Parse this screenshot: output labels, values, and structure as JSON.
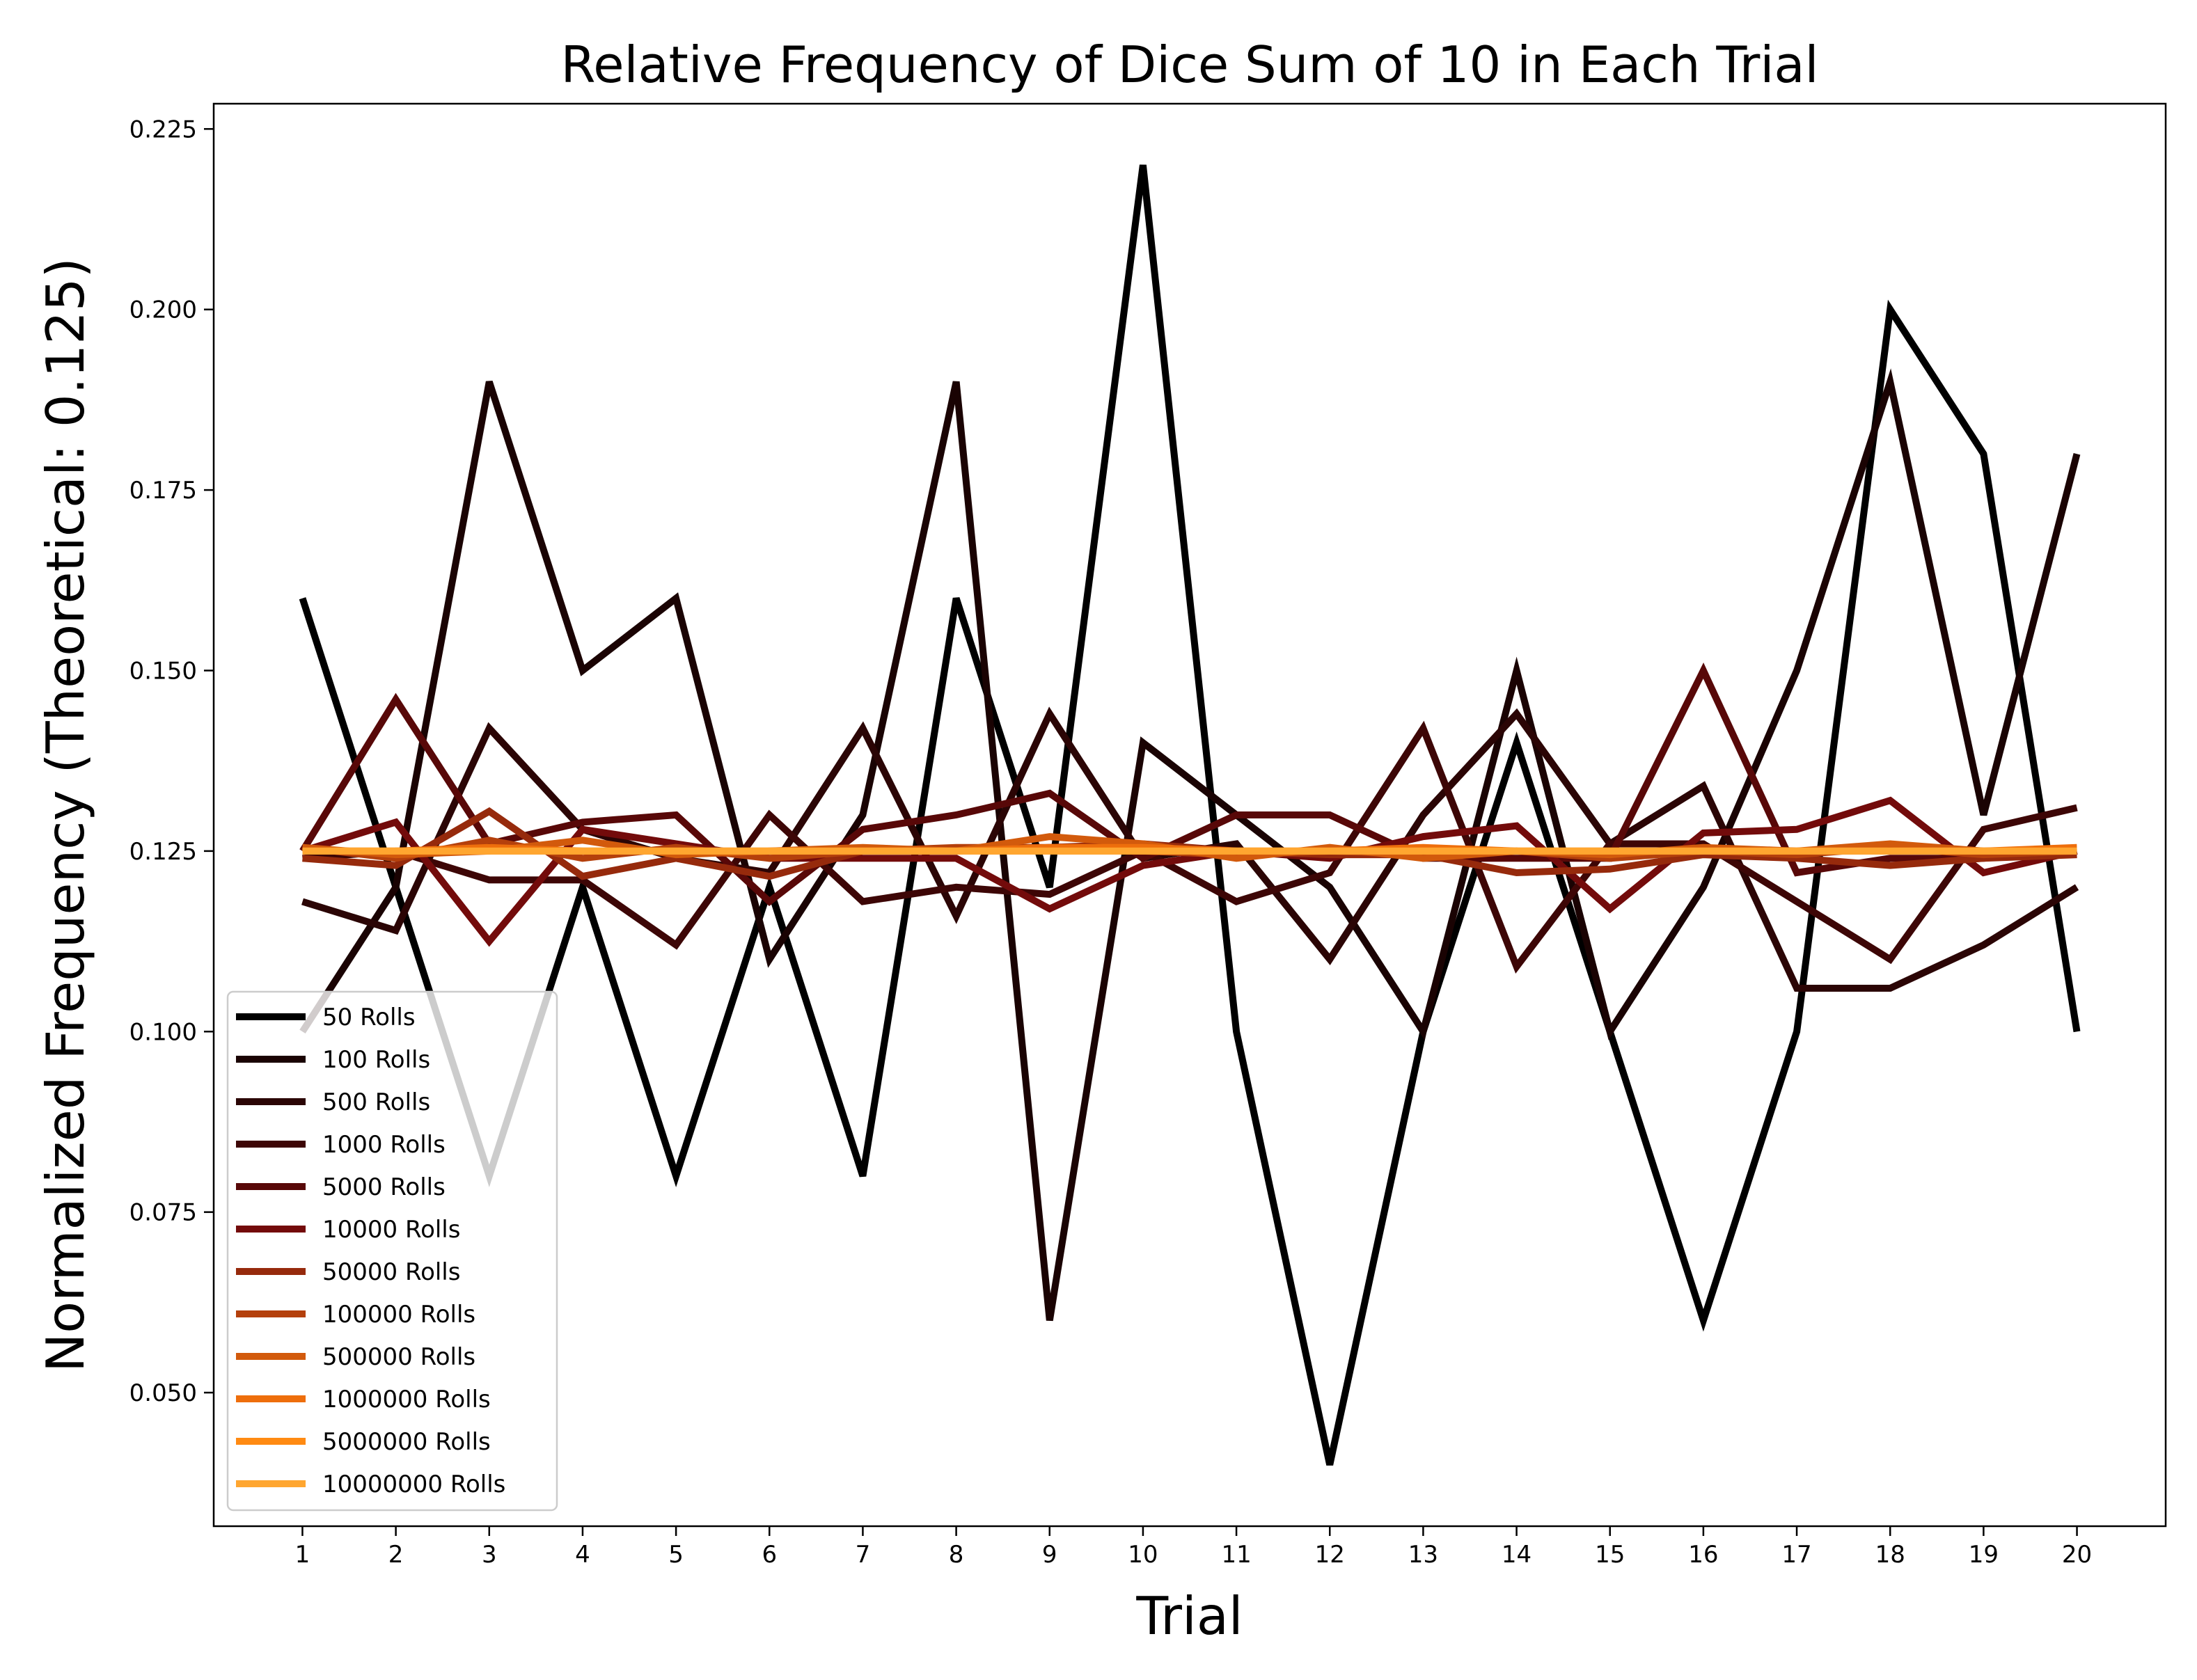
{
  "chart_data": {
    "type": "line",
    "title": "Relative Frequency of Dice Sum of 10 in Each Trial",
    "xlabel": "Trial",
    "ylabel": "Normalized Frequency (Theoretical: 0.125)",
    "x": [
      1,
      2,
      3,
      4,
      5,
      6,
      7,
      8,
      9,
      10,
      11,
      12,
      13,
      14,
      15,
      16,
      17,
      18,
      19,
      20
    ],
    "xlim": [
      0.05,
      20.95
    ],
    "ylim": [
      0.0315,
      0.2285
    ],
    "yticks": [
      0.05,
      0.075,
      0.1,
      0.125,
      0.15,
      0.175,
      0.2,
      0.225
    ],
    "ytick_labels": [
      "0.050",
      "0.075",
      "0.100",
      "0.125",
      "0.150",
      "0.175",
      "0.200",
      "0.225"
    ],
    "legend_position": "lower-left",
    "grid": false,
    "series": [
      {
        "name": "50 Rolls",
        "color": "#000000",
        "values": [
          0.16,
          0.12,
          0.08,
          0.12,
          0.08,
          0.12,
          0.08,
          0.16,
          0.12,
          0.22,
          0.1,
          0.04,
          0.1,
          0.14,
          0.1,
          0.06,
          0.1,
          0.2,
          0.18,
          0.1
        ]
      },
      {
        "name": "100 Rolls",
        "color": "#1a0303",
        "values": [
          0.1,
          0.12,
          0.19,
          0.15,
          0.16,
          0.11,
          0.13,
          0.19,
          0.06,
          0.14,
          0.13,
          0.12,
          0.1,
          0.15,
          0.1,
          0.12,
          0.15,
          0.19,
          0.13,
          0.18
        ]
      },
      {
        "name": "500 Rolls",
        "color": "#2b0505",
        "values": [
          0.118,
          0.114,
          0.142,
          0.128,
          0.124,
          0.122,
          0.142,
          0.116,
          0.144,
          0.124,
          0.126,
          0.11,
          0.13,
          0.144,
          0.126,
          0.134,
          0.106,
          0.106,
          0.112,
          0.12
        ]
      },
      {
        "name": "1000 Rolls",
        "color": "#3d0606",
        "values": [
          0.124,
          0.125,
          0.121,
          0.121,
          0.112,
          0.13,
          0.118,
          0.12,
          0.119,
          0.125,
          0.118,
          0.122,
          0.142,
          0.109,
          0.126,
          0.126,
          0.118,
          0.11,
          0.128,
          0.131
        ]
      },
      {
        "name": "5000 Rolls",
        "color": "#580808",
        "values": [
          0.125,
          0.146,
          0.126,
          0.129,
          0.13,
          0.118,
          0.128,
          0.13,
          0.133,
          0.124,
          0.13,
          0.13,
          0.124,
          0.124,
          0.124,
          0.15,
          0.122,
          0.124,
          0.124,
          0.125
        ]
      },
      {
        "name": "10000 Rolls",
        "color": "#730b0b",
        "values": [
          0.125,
          0.129,
          0.1125,
          0.128,
          0.126,
          0.124,
          0.124,
          0.124,
          0.117,
          0.123,
          0.125,
          0.124,
          0.127,
          0.1285,
          0.117,
          0.1275,
          0.128,
          0.132,
          0.122,
          0.125
        ]
      },
      {
        "name": "50000 Rolls",
        "color": "#962a0c",
        "values": [
          0.124,
          0.123,
          0.1305,
          0.1215,
          0.124,
          0.1215,
          0.125,
          0.125,
          0.1255,
          0.126,
          0.125,
          0.1245,
          0.1245,
          0.122,
          0.1225,
          0.1245,
          0.124,
          0.123,
          0.124,
          0.1245
        ]
      },
      {
        "name": "100000 Rolls",
        "color": "#b4400c",
        "values": [
          0.1255,
          0.124,
          0.1265,
          0.124,
          0.1255,
          0.124,
          0.125,
          0.1255,
          0.1255,
          0.125,
          0.1245,
          0.125,
          0.1245,
          0.125,
          0.124,
          0.125,
          0.1245,
          0.1255,
          0.1245,
          0.125
        ]
      },
      {
        "name": "500000 Rolls",
        "color": "#d25a0c",
        "values": [
          0.1255,
          0.1245,
          0.125,
          0.1265,
          0.1245,
          0.125,
          0.1255,
          0.125,
          0.127,
          0.126,
          0.124,
          0.1255,
          0.124,
          0.125,
          0.1245,
          0.1255,
          0.125,
          0.126,
          0.125,
          0.125
        ]
      },
      {
        "name": "1000000 Rolls",
        "color": "#ee6e0c",
        "values": [
          0.125,
          0.125,
          0.1255,
          0.125,
          0.125,
          0.125,
          0.125,
          0.125,
          0.1255,
          0.1255,
          0.125,
          0.125,
          0.1255,
          0.125,
          0.125,
          0.125,
          0.125,
          0.125,
          0.125,
          0.1255
        ]
      },
      {
        "name": "5000000 Rolls",
        "color": "#ff8a12",
        "values": [
          0.125,
          0.125,
          0.125,
          0.125,
          0.125,
          0.125,
          0.125,
          0.125,
          0.125,
          0.125,
          0.125,
          0.125,
          0.125,
          0.125,
          0.125,
          0.125,
          0.125,
          0.125,
          0.125,
          0.125
        ]
      },
      {
        "name": "10000000 Rolls",
        "color": "#ffa630",
        "values": [
          0.125,
          0.125,
          0.125,
          0.125,
          0.125,
          0.125,
          0.125,
          0.125,
          0.125,
          0.125,
          0.125,
          0.125,
          0.125,
          0.125,
          0.125,
          0.125,
          0.125,
          0.125,
          0.125,
          0.125
        ]
      }
    ]
  }
}
